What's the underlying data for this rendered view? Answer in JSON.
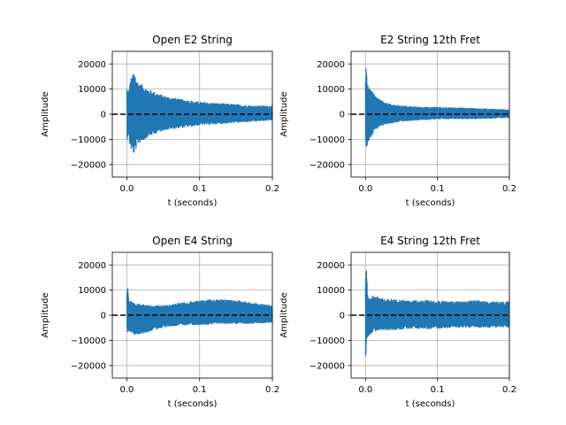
{
  "colors": {
    "series": "#1f77b4",
    "zero_line": "#000000",
    "grid": "#b0b0b0",
    "axes": "#000000"
  },
  "chart_data": [
    {
      "type": "line",
      "title": "Open E2 String",
      "xlabel": "t (seconds)",
      "ylabel": "Amplitude",
      "xlim": [
        -0.02,
        0.2
      ],
      "ylim": [
        -25000,
        25000
      ],
      "xticks": [
        0.0,
        0.1,
        0.2
      ],
      "xtick_labels": [
        "0.0",
        "0.1",
        "0.2"
      ],
      "yticks": [
        -20000,
        -10000,
        0,
        10000,
        20000
      ],
      "ytick_labels": [
        "−20000",
        "−10000",
        "0",
        "10000",
        "20000"
      ],
      "grid": true,
      "zero_line": {
        "y": 0,
        "style": "dashed"
      },
      "series": [
        {
          "style": "filled-oscillation-envelope",
          "x_range": [
            0.0,
            0.2
          ],
          "envelope_t": [
            0.0,
            0.002,
            0.005,
            0.01,
            0.015,
            0.02,
            0.03,
            0.05,
            0.075,
            0.1,
            0.125,
            0.15,
            0.175,
            0.2
          ],
          "envelope_upper": [
            11000,
            9000,
            14000,
            17000,
            13000,
            12000,
            10000,
            7500,
            6000,
            5000,
            4500,
            4000,
            3500,
            3500
          ],
          "envelope_lower": [
            -11000,
            -8000,
            -14000,
            -16000,
            -12000,
            -11000,
            -9000,
            -6500,
            -5500,
            -4500,
            -4000,
            -3500,
            -3000,
            -2500
          ]
        }
      ]
    },
    {
      "type": "line",
      "title": "E2 String 12th Fret",
      "xlabel": "t (seconds)",
      "ylabel": "Amplitude",
      "xlim": [
        -0.02,
        0.2
      ],
      "ylim": [
        -25000,
        25000
      ],
      "xticks": [
        0.0,
        0.1,
        0.2
      ],
      "xtick_labels": [
        "0.0",
        "0.1",
        "0.2"
      ],
      "yticks": [
        -20000,
        -10000,
        0,
        10000,
        20000
      ],
      "ytick_labels": [
        "−20000",
        "−10000",
        "0",
        "10000",
        "20000"
      ],
      "grid": true,
      "zero_line": {
        "y": 0,
        "style": "dashed"
      },
      "series": [
        {
          "style": "filled-oscillation-envelope",
          "x_range": [
            0.0,
            0.2
          ],
          "envelope_t": [
            0.0,
            0.001,
            0.003,
            0.006,
            0.01,
            0.015,
            0.02,
            0.03,
            0.05,
            0.075,
            0.1,
            0.15,
            0.2
          ],
          "envelope_upper": [
            14000,
            22000,
            12000,
            10000,
            9000,
            7000,
            6000,
            4500,
            3500,
            3000,
            3000,
            2500,
            2000
          ],
          "envelope_lower": [
            -10000,
            -14000,
            -12000,
            -10000,
            -8000,
            -6000,
            -5000,
            -4000,
            -3000,
            -2500,
            -2000,
            -2000,
            -1500
          ]
        }
      ]
    },
    {
      "type": "line",
      "title": "Open E4 String",
      "xlabel": "t (seconds)",
      "ylabel": "Amplitude",
      "xlim": [
        -0.02,
        0.2
      ],
      "ylim": [
        -25000,
        25000
      ],
      "xticks": [
        0.0,
        0.1,
        0.2
      ],
      "xtick_labels": [
        "0.0",
        "0.1",
        "0.2"
      ],
      "yticks": [
        -20000,
        -10000,
        0,
        10000,
        20000
      ],
      "ytick_labels": [
        "−20000",
        "−10000",
        "0",
        "10000",
        "20000"
      ],
      "grid": true,
      "zero_line": {
        "y": 0,
        "style": "dashed"
      },
      "series": [
        {
          "style": "filled-oscillation-envelope",
          "x_range": [
            0.0,
            0.2
          ],
          "envelope_t": [
            0.0,
            0.001,
            0.003,
            0.01,
            0.03,
            0.05,
            0.075,
            0.1,
            0.125,
            0.15,
            0.175,
            0.2
          ],
          "envelope_upper": [
            9000,
            13000,
            6000,
            5000,
            4000,
            4000,
            5000,
            6000,
            6500,
            6000,
            5000,
            4000
          ],
          "envelope_lower": [
            -6000,
            -7000,
            -6500,
            -8000,
            -7000,
            -5000,
            -4000,
            -4000,
            -3500,
            -3500,
            -3500,
            -3000
          ]
        }
      ]
    },
    {
      "type": "line",
      "title": "E4 String 12th Fret",
      "xlabel": "t (seconds)",
      "ylabel": "Amplitude",
      "xlim": [
        -0.02,
        0.2
      ],
      "ylim": [
        -25000,
        25000
      ],
      "xticks": [
        0.0,
        0.1,
        0.2
      ],
      "xtick_labels": [
        "0.0",
        "0.1",
        "0.2"
      ],
      "yticks": [
        -20000,
        -10000,
        0,
        10000,
        20000
      ],
      "ytick_labels": [
        "−20000",
        "−10000",
        "0",
        "10000",
        "20000"
      ],
      "grid": true,
      "zero_line": {
        "y": 0,
        "style": "dashed"
      },
      "series": [
        {
          "style": "filled-oscillation-envelope",
          "x_range": [
            0.0,
            0.2
          ],
          "envelope_t": [
            0.0,
            0.001,
            0.003,
            0.005,
            0.01,
            0.02,
            0.04,
            0.06,
            0.08,
            0.1,
            0.125,
            0.15,
            0.175,
            0.2
          ],
          "envelope_upper": [
            12000,
            21000,
            8000,
            7000,
            8000,
            7000,
            6500,
            6000,
            6000,
            6000,
            5500,
            6000,
            5500,
            5500
          ],
          "envelope_lower": [
            -24000,
            -12000,
            -9000,
            -8000,
            -7000,
            -6000,
            -6000,
            -5500,
            -5500,
            -5500,
            -5000,
            -5000,
            -5000,
            -5000
          ]
        }
      ]
    }
  ]
}
